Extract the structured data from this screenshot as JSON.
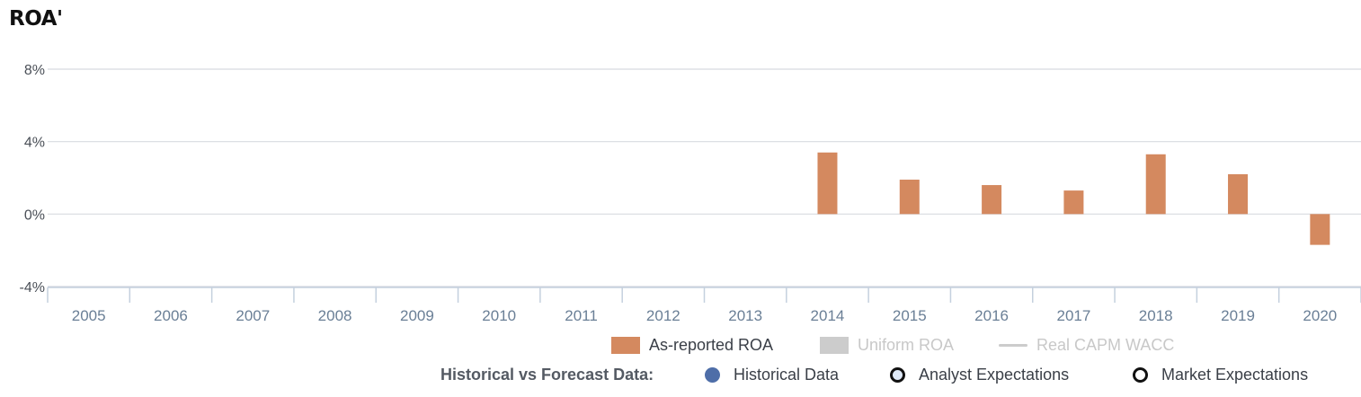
{
  "title": "ROA'",
  "chart_data": {
    "type": "bar",
    "categories": [
      "2005",
      "2006",
      "2007",
      "2008",
      "2009",
      "2010",
      "2011",
      "2012",
      "2013",
      "2014",
      "2015",
      "2016",
      "2017",
      "2018",
      "2019",
      "2020"
    ],
    "series": [
      {
        "name": "As-reported ROA",
        "values": [
          null,
          null,
          null,
          null,
          null,
          null,
          null,
          null,
          null,
          3.4,
          1.9,
          1.6,
          1.3,
          3.3,
          2.2,
          -1.7
        ],
        "color": "#d4895f"
      }
    ],
    "yticks": [
      "8%",
      "4%",
      "0%",
      "-4%"
    ],
    "ylim": [
      -4,
      8
    ],
    "grid": true,
    "legend_position": "bottom"
  },
  "legend": {
    "items": [
      {
        "label": "As-reported ROA",
        "color": "#d4895f",
        "active": true
      },
      {
        "label": "Uniform ROA",
        "color": "#cccccc",
        "active": false
      },
      {
        "label": "Real CAPM WACC",
        "color": "#cccccc",
        "active": false
      }
    ],
    "historical_label": "Historical vs Forecast Data:",
    "data_types": [
      {
        "label": "Historical Data"
      },
      {
        "label": "Analyst Expectations"
      },
      {
        "label": "Market Expectations"
      }
    ]
  }
}
